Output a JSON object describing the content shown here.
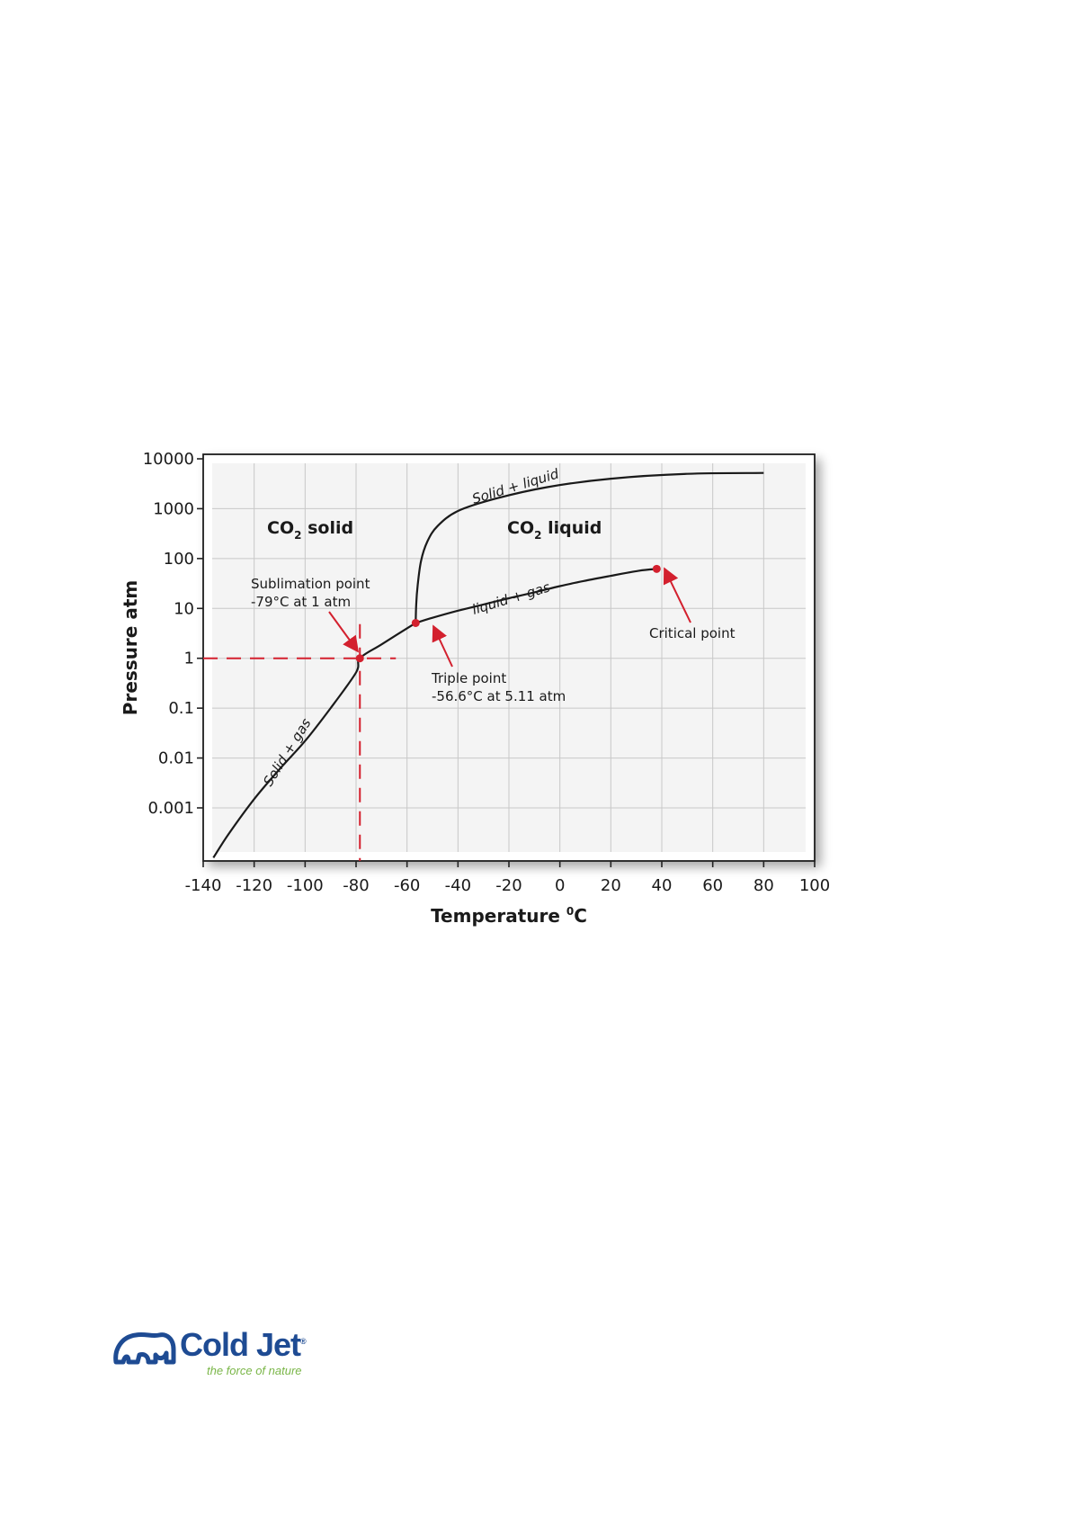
{
  "chart_data": {
    "type": "line",
    "title": "",
    "xlabel_main": "Temperature ",
    "xlabel_sup": "0",
    "xlabel_end": "C",
    "ylabel": "Pressure  atm",
    "xlim": [
      -140,
      100
    ],
    "ylim_log10": [
      -4,
      4
    ],
    "x_ticks": [
      -140,
      -120,
      -100,
      -80,
      -60,
      -40,
      -20,
      0,
      20,
      40,
      60,
      80,
      100
    ],
    "x_tick_labels": [
      "-140",
      "-120",
      "-100",
      "-80",
      "-60",
      "-40",
      "-20",
      "0",
      "20",
      "40",
      "60",
      "80",
      "100"
    ],
    "y_ticks": [
      0.001,
      0.01,
      0.1,
      1,
      10,
      100,
      1000,
      10000
    ],
    "y_tick_labels": [
      "0.001",
      "0.01",
      "0.1",
      "1",
      "10",
      "100",
      "1000",
      "10000"
    ],
    "grid": true,
    "series": [
      {
        "label_text": "Solid + gas",
        "x": [
          -136,
          -130,
          -120,
          -110,
          -100,
          -90,
          -80,
          -78.5,
          -70,
          -56.6
        ],
        "y": [
          0.0001,
          0.0003,
          0.0015,
          0.006,
          0.022,
          0.1,
          0.52,
          1,
          1.9,
          5.11
        ]
      },
      {
        "label_text": "liquid + gas",
        "x": [
          -56.6,
          -50,
          -40,
          -30,
          -20,
          -10,
          0,
          10,
          20,
          31,
          38
        ],
        "y": [
          5.11,
          6.5,
          9,
          12,
          16,
          21,
          28,
          36,
          45,
          57,
          62
        ]
      },
      {
        "label_text": "Solid + liquid",
        "x": [
          -56.6,
          -56.4,
          -55.8,
          -54.5,
          -52,
          -48,
          -40,
          -25,
          -5,
          20,
          50,
          80
        ],
        "y": [
          5.11,
          12,
          30,
          90,
          220,
          450,
          900,
          1600,
          2700,
          4000,
          5000,
          5200
        ]
      }
    ],
    "regions": {
      "solid_main": "CO",
      "solid_sub": "2",
      "solid_end": " solid",
      "liquid_main": "CO",
      "liquid_sub": "2",
      "liquid_end": " liquid"
    },
    "points": {
      "sublimation": {
        "x": -78.5,
        "y": 1,
        "line1": "Sublimation point",
        "line2": "-79°C at 1 atm"
      },
      "triple": {
        "x": -56.6,
        "y": 5.11,
        "line1": "Triple point",
        "line2": "-56.6°C at  5.11 atm"
      },
      "critical": {
        "x": 38,
        "y": 62,
        "line1": "Critical point"
      }
    },
    "colors": {
      "curve": "#1a1a1a",
      "marker": "#d3202e",
      "grid": "#c8c8c8",
      "frame": "#222222"
    }
  },
  "logo": {
    "brand": "Cold Jet",
    "registered": "®",
    "tagline": "the force of nature",
    "colors": {
      "brand": "#1e4b93",
      "tagline": "#7ab648"
    }
  }
}
